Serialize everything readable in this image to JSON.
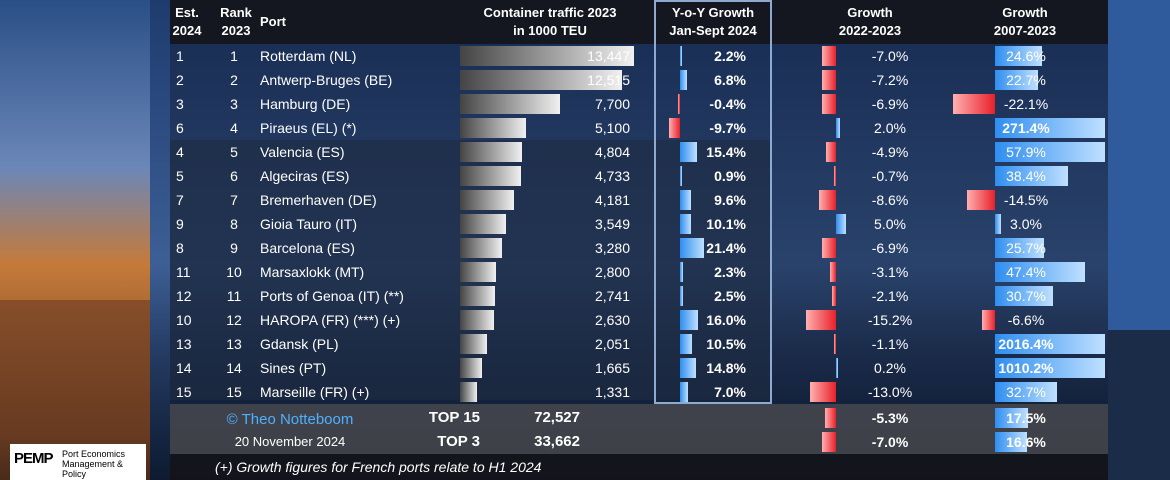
{
  "headers": {
    "est": [
      "Est.",
      "2024"
    ],
    "rank": [
      "Rank",
      "2023"
    ],
    "port": "Port",
    "traffic": [
      "Container traffic 2023",
      "in 1000 TEU"
    ],
    "yoy": [
      "Y-o-Y Growth",
      "Jan-Sept 2024"
    ],
    "g2223": [
      "Growth",
      "2022-2023"
    ],
    "g0723": [
      "Growth",
      "2007-2023"
    ]
  },
  "chart_data": {
    "type": "table",
    "rows": [
      {
        "est": "1",
        "rank": "1",
        "port": "Rotterdam (NL)",
        "teu": 13447,
        "teu_label": "13,447",
        "yoy": 2.2,
        "yoy_label": "2.2%",
        "g2223": -7.0,
        "g2223_label": "-7.0%",
        "g0723": 24.6,
        "g0723_label": "24.6%"
      },
      {
        "est": "2",
        "rank": "2",
        "port": "Antwerp-Bruges (BE)",
        "teu": 12515,
        "teu_label": "12,515",
        "yoy": 6.8,
        "yoy_label": "6.8%",
        "g2223": -7.2,
        "g2223_label": "-7.2%",
        "g0723": 22.7,
        "g0723_label": "22.7%"
      },
      {
        "est": "3",
        "rank": "3",
        "port": "Hamburg (DE)",
        "teu": 7700,
        "teu_label": "7,700",
        "yoy": -0.4,
        "yoy_label": "-0.4%",
        "g2223": -6.9,
        "g2223_label": "-6.9%",
        "g0723": -22.1,
        "g0723_label": "-22.1%"
      },
      {
        "est": "6",
        "rank": "4",
        "port": "Piraeus (EL) (*)",
        "teu": 5100,
        "teu_label": "5,100",
        "yoy": -9.7,
        "yoy_label": "-9.7%",
        "g2223": 2.0,
        "g2223_label": "2.0%",
        "g0723": 271.4,
        "g0723_label": "271.4%"
      },
      {
        "est": "4",
        "rank": "5",
        "port": "Valencia (ES)",
        "teu": 4804,
        "teu_label": "4,804",
        "yoy": 15.4,
        "yoy_label": "15.4%",
        "g2223": -4.9,
        "g2223_label": "-4.9%",
        "g0723": 57.9,
        "g0723_label": "57.9%"
      },
      {
        "est": "5",
        "rank": "6",
        "port": "Algeciras (ES)",
        "teu": 4733,
        "teu_label": "4,733",
        "yoy": 0.9,
        "yoy_label": "0.9%",
        "g2223": -0.7,
        "g2223_label": "-0.7%",
        "g0723": 38.4,
        "g0723_label": "38.4%"
      },
      {
        "est": "7",
        "rank": "7",
        "port": "Bremerhaven (DE)",
        "teu": 4181,
        "teu_label": "4,181",
        "yoy": 9.6,
        "yoy_label": "9.6%",
        "g2223": -8.6,
        "g2223_label": "-8.6%",
        "g0723": -14.5,
        "g0723_label": "-14.5%"
      },
      {
        "est": "9",
        "rank": "8",
        "port": "Gioia Tauro (IT)",
        "teu": 3549,
        "teu_label": "3,549",
        "yoy": 10.1,
        "yoy_label": "10.1%",
        "g2223": 5.0,
        "g2223_label": "5.0%",
        "g0723": 3.0,
        "g0723_label": "3.0%"
      },
      {
        "est": "8",
        "rank": "9",
        "port": "Barcelona (ES)",
        "teu": 3280,
        "teu_label": "3,280",
        "yoy": 21.4,
        "yoy_label": "21.4%",
        "g2223": -6.9,
        "g2223_label": "-6.9%",
        "g0723": 25.7,
        "g0723_label": "25.7%"
      },
      {
        "est": "11",
        "rank": "10",
        "port": "Marsaxlokk (MT)",
        "teu": 2800,
        "teu_label": "2,800",
        "yoy": 2.3,
        "yoy_label": "2.3%",
        "g2223": -3.1,
        "g2223_label": "-3.1%",
        "g0723": 47.4,
        "g0723_label": "47.4%"
      },
      {
        "est": "12",
        "rank": "11",
        "port": "Ports of Genoa (IT) (**)",
        "teu": 2741,
        "teu_label": "2,741",
        "yoy": 2.5,
        "yoy_label": "2.5%",
        "g2223": -2.1,
        "g2223_label": "-2.1%",
        "g0723": 30.7,
        "g0723_label": "30.7%"
      },
      {
        "est": "10",
        "rank": "12",
        "port": "HAROPA (FR) (***) (+)",
        "teu": 2630,
        "teu_label": "2,630",
        "yoy": 16.0,
        "yoy_label": "16.0%",
        "g2223": -15.2,
        "g2223_label": "-15.2%",
        "g0723": -6.6,
        "g0723_label": "-6.6%"
      },
      {
        "est": "13",
        "rank": "13",
        "port": "Gdansk (PL)",
        "teu": 2051,
        "teu_label": "2,051",
        "yoy": 10.5,
        "yoy_label": "10.5%",
        "g2223": -1.1,
        "g2223_label": "-1.1%",
        "g0723": 2016.4,
        "g0723_label": "2016.4%"
      },
      {
        "est": "14",
        "rank": "14",
        "port": "Sines (PT)",
        "teu": 1665,
        "teu_label": "1,665",
        "yoy": 14.8,
        "yoy_label": "14.8%",
        "g2223": 0.2,
        "g2223_label": "0.2%",
        "g0723": 1010.2,
        "g0723_label": "1010.2%"
      },
      {
        "est": "15",
        "rank": "15",
        "port": "Marseille (FR) (+)",
        "teu": 1331,
        "teu_label": "1,331",
        "yoy": 7.0,
        "yoy_label": "7.0%",
        "g2223": -13.0,
        "g2223_label": "-13.0%",
        "g0723": 32.7,
        "g0723_label": "32.7%"
      }
    ],
    "totals": [
      {
        "label": "TOP 15",
        "teu_label": "72,527",
        "g2223": -5.3,
        "g2223_label": "-5.3%",
        "g0723": 17.5,
        "g0723_label": "17.5%"
      },
      {
        "label": "TOP 3",
        "teu_label": "33,662",
        "g2223": -7.0,
        "g2223_label": "-7.0%",
        "g0723": 16.6,
        "g0723_label": "16.6%"
      }
    ]
  },
  "credit": {
    "author": "© Theo Notteboom",
    "date": "20 November 2024"
  },
  "footnote": "(+) Growth figures for French ports relate to H1 2024",
  "logo": {
    "mark": "PEMP",
    "text": [
      "Port Economics",
      "Management & Policy"
    ]
  },
  "colors": {
    "positive": "#2f8ef0",
    "negative": "#e8202a",
    "teu_bar": "#d9d9d9"
  }
}
